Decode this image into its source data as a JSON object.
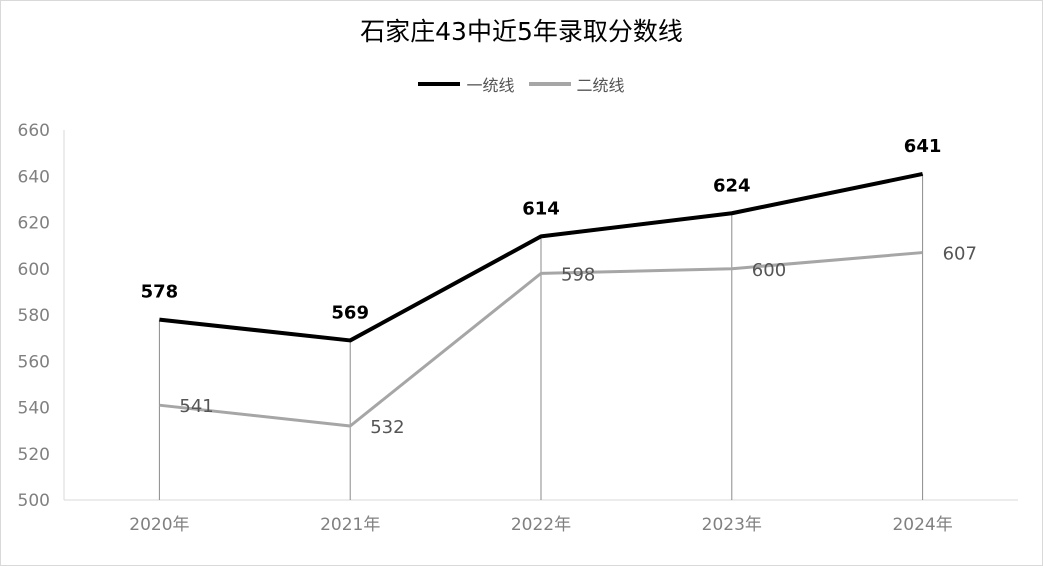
{
  "chart_data": {
    "type": "line",
    "title": "石家庄43中近5年录取分数线",
    "categories": [
      "2020年",
      "2021年",
      "2022年",
      "2023年",
      "2024年"
    ],
    "series": [
      {
        "name": "一统线",
        "values": [
          578,
          569,
          614,
          624,
          641
        ],
        "color": "#000000"
      },
      {
        "name": "二统线",
        "values": [
          541,
          532,
          598,
          600,
          607
        ],
        "color": "#a6a6a6"
      }
    ],
    "ylim": [
      500,
      660
    ],
    "yticks": [
      500,
      520,
      540,
      560,
      580,
      600,
      620,
      640,
      660
    ],
    "legend": "top",
    "grid": false,
    "xlabel": "",
    "ylabel": ""
  }
}
